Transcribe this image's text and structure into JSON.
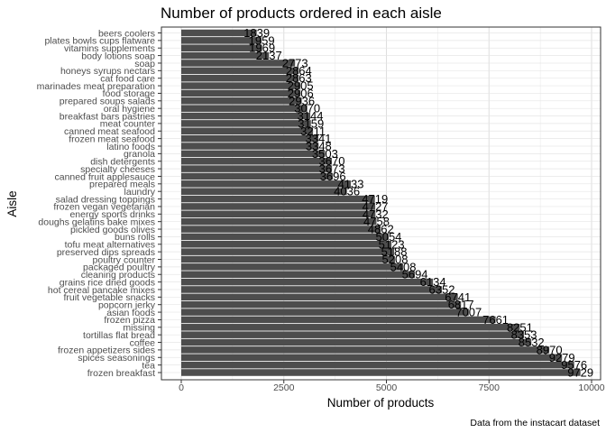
{
  "chart_data": {
    "type": "bar",
    "orientation": "horizontal",
    "title": "Number of products ordered in each aisle",
    "xlabel": "Number of products",
    "ylabel": "Aisle",
    "caption": "Data from the instacart dataset",
    "xlim": [
      0,
      10000
    ],
    "xticks": [
      0,
      2500,
      5000,
      7500,
      10000
    ],
    "grid": true,
    "bar_color": "#4d4d4d",
    "categories": [
      "beers coolers",
      "plates bowls cups flatware",
      "vitamins supplements",
      "body lotions soap",
      "soap",
      "honeys syrups nectars",
      "cat food care",
      "marinades meat preparation",
      "food storage",
      "prepared soups salads",
      "oral hygiene",
      "breakfast bars pastries",
      "meat counter",
      "canned meat seafood",
      "frozen meat seafood",
      "latino foods",
      "granola",
      "dish detergents",
      "specialty cheeses",
      "canned fruit applesauce",
      "prepared meals",
      "laundry",
      "salad dressing toppings",
      "frozen vegan vegetarian",
      "energy sports drinks",
      "doughs gelatins bake mixes",
      "pickled goods olives",
      "buns rolls",
      "tofu meat alternatives",
      "preserved dips spreads",
      "poultry counter",
      "packaged poultry",
      "cleaning products",
      "grains rice dried goods",
      "hot cereal pancake mixes",
      "fruit vegetable snacks",
      "popcorn jerky",
      "asian foods",
      "frozen pizza",
      "missing",
      "tortillas flat bread",
      "coffee",
      "frozen appetizers sides",
      "spices seasonings",
      "tea",
      "frozen breakfast"
    ],
    "values": [
      1839,
      1959,
      1969,
      2137,
      2773,
      2864,
      2863,
      2905,
      2906,
      2936,
      3070,
      3144,
      3159,
      3211,
      3341,
      3348,
      3503,
      3670,
      3673,
      3696,
      4133,
      4036,
      4719,
      4727,
      4732,
      4758,
      4862,
      5054,
      5123,
      5188,
      5208,
      5408,
      5694,
      6134,
      6352,
      6741,
      6817,
      7007,
      7661,
      8251,
      8353,
      8532,
      8970,
      9279,
      9576,
      9729
    ]
  }
}
